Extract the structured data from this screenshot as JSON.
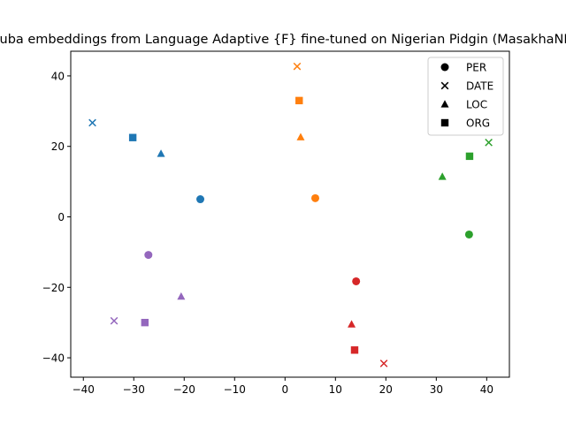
{
  "chart_data": {
    "type": "scatter",
    "title": "Yoruba embeddings from Language Adaptive {F} fine-tuned on Nigerian Pidgin (MasakhaNER)",
    "xlabel": "",
    "ylabel": "",
    "xlim": [
      -42.5,
      44.5
    ],
    "ylim": [
      -45.5,
      47
    ],
    "xticks": [
      -40,
      -30,
      -20,
      -10,
      0,
      10,
      20,
      30,
      40
    ],
    "yticks": [
      -40,
      -20,
      0,
      20,
      40
    ],
    "grid": false,
    "legend_position": "top-right",
    "legend": [
      {
        "label": "PER",
        "marker": "circle"
      },
      {
        "label": "DATE",
        "marker": "x"
      },
      {
        "label": "LOC",
        "marker": "triangle"
      },
      {
        "label": "ORG",
        "marker": "square"
      }
    ],
    "series": [
      {
        "color": "#1f77b4",
        "points": [
          {
            "entity": "PER",
            "x": -16.8,
            "y": 5.0
          },
          {
            "entity": "DATE",
            "x": -38.2,
            "y": 26.7
          },
          {
            "entity": "LOC",
            "x": -24.6,
            "y": 17.9
          },
          {
            "entity": "ORG",
            "x": -30.2,
            "y": 22.5
          }
        ]
      },
      {
        "color": "#ff7f0e",
        "points": [
          {
            "entity": "PER",
            "x": 6.0,
            "y": 5.3
          },
          {
            "entity": "DATE",
            "x": 2.4,
            "y": 42.7
          },
          {
            "entity": "LOC",
            "x": 3.1,
            "y": 22.6
          },
          {
            "entity": "ORG",
            "x": 2.8,
            "y": 33.0
          }
        ]
      },
      {
        "color": "#2ca02c",
        "points": [
          {
            "entity": "PER",
            "x": 36.5,
            "y": -5.0
          },
          {
            "entity": "DATE",
            "x": 40.4,
            "y": 21.1
          },
          {
            "entity": "LOC",
            "x": 31.2,
            "y": 11.4
          },
          {
            "entity": "ORG",
            "x": 36.6,
            "y": 17.2
          }
        ]
      },
      {
        "color": "#d62728",
        "points": [
          {
            "entity": "PER",
            "x": 14.1,
            "y": -18.3
          },
          {
            "entity": "DATE",
            "x": 19.6,
            "y": -41.6
          },
          {
            "entity": "LOC",
            "x": 13.2,
            "y": -30.5
          },
          {
            "entity": "ORG",
            "x": 13.8,
            "y": -37.8
          }
        ]
      },
      {
        "color": "#9467bd",
        "points": [
          {
            "entity": "PER",
            "x": -27.1,
            "y": -10.8
          },
          {
            "entity": "DATE",
            "x": -33.9,
            "y": -29.5
          },
          {
            "entity": "LOC",
            "x": -20.6,
            "y": -22.6
          },
          {
            "entity": "ORG",
            "x": -27.8,
            "y": -30.0
          }
        ]
      }
    ]
  }
}
